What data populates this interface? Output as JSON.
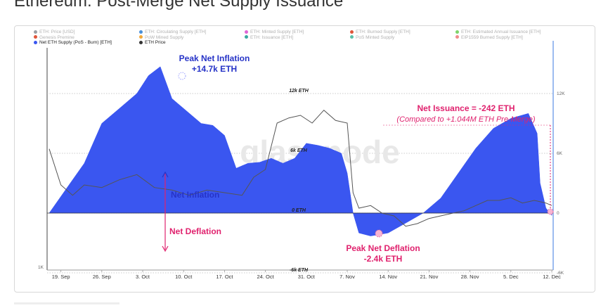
{
  "page": {
    "title": "Ethereum: Post-Merge Net Supply Issuance"
  },
  "legend": [
    {
      "label": "ETH: Price [USD]",
      "color": "#9aa0a6",
      "active": false
    },
    {
      "label": "ETH: Circulating Supply [ETH]",
      "color": "#4a90d9",
      "active": false
    },
    {
      "label": "ETH: Minted Supply [ETH]",
      "color": "#e066d6",
      "active": false
    },
    {
      "label": "ETH: Burned Supply [ETH]",
      "color": "#e0553a",
      "active": false
    },
    {
      "label": "ETH: Estimated Annual Issuance [ETH]",
      "color": "#7fd46b",
      "active": false
    },
    {
      "label": "Genesis Premine",
      "color": "#e0553a",
      "active": false
    },
    {
      "label": "PoW Mined Supply",
      "color": "#f2a93b",
      "active": false
    },
    {
      "label": "ETH: Issuance [ETH]",
      "color": "#3aa8a0",
      "active": false
    },
    {
      "label": "PoS Minted Supply",
      "color": "#5bc0a8",
      "active": false
    },
    {
      "label": "EIP1559 Burned Supply [ETH]",
      "color": "#f08a8a",
      "active": false
    },
    {
      "label": "Net ETH Supply (PoS - Burn) [ETH]",
      "color": "#3a56f0",
      "active": true
    },
    {
      "label": "ETH Price",
      "color": "#333333",
      "active": true
    }
  ],
  "annotations": {
    "peak_inflation_title": "Peak Net Inflation",
    "peak_inflation_value": "+14.7k ETH",
    "net_issuance_title": "Net Issuance = -242 ETH",
    "net_issuance_sub": "(Compared to +1.044M ETH Pre-Merge)",
    "net_inflation": "Net Inflation",
    "net_deflation": "Net Deflation",
    "peak_deflation_title": "Peak Net Deflation",
    "peak_deflation_value": "-2.4k ETH",
    "watermark": "glassnode"
  },
  "colors": {
    "area": "#3a56f0",
    "price_line": "#555555",
    "inflation_text": "#2633c7",
    "deflation_text": "#e0226e",
    "right_axis": "#3a78e0"
  },
  "chart_data": {
    "type": "area",
    "x_ticks": [
      "19. Sep",
      "26. Sep",
      "3. Oct",
      "10. Oct",
      "17. Oct",
      "24. Oct",
      "31. Oct",
      "7. Nov",
      "14. Nov",
      "21. Nov",
      "28. Nov",
      "5. Dec",
      "12. Dec"
    ],
    "y_ticks_center": [
      "12k ETH",
      "6k ETH",
      "0 ETH",
      "-6k ETH"
    ],
    "y_ticks_right": [
      "12K",
      "6K",
      "0",
      "-6K"
    ],
    "y_tick_values": [
      12000,
      6000,
      0,
      -6000
    ],
    "y_tick_left": "1K",
    "ylim": [
      -6000,
      15000
    ],
    "x_range": [
      0,
      86
    ],
    "x_tick_positions": [
      2,
      9,
      16,
      23,
      30,
      37,
      44,
      51,
      58,
      65,
      72,
      79,
      86
    ],
    "series": [
      {
        "name": "Net ETH Supply (PoS - Burn) [ETH]",
        "x": [
          0,
          3,
          6,
          9,
          12,
          15,
          17,
          19,
          21,
          22,
          24,
          26,
          28,
          30,
          32,
          34,
          36,
          38,
          40,
          42,
          44,
          46,
          48,
          50,
          51,
          52,
          53,
          55,
          58,
          61,
          64,
          67,
          70,
          73,
          76,
          79,
          82,
          83.5,
          84,
          85,
          86
        ],
        "values": [
          0,
          2500,
          5000,
          9000,
          10500,
          12000,
          13800,
          14700,
          11500,
          11000,
          10000,
          9000,
          8800,
          7800,
          4500,
          5000,
          5100,
          5500,
          5000,
          5500,
          7000,
          6800,
          6500,
          6000,
          4000,
          0,
          -2000,
          -2300,
          -2000,
          -1000,
          0,
          1500,
          4000,
          6500,
          8500,
          9500,
          10000,
          8000,
          3000,
          500,
          -242
        ]
      },
      {
        "name": "ETH Price",
        "x": [
          0,
          2,
          4,
          6,
          9,
          12,
          15,
          18,
          21,
          24,
          27,
          30,
          33,
          35,
          37,
          39,
          41,
          43,
          45,
          47,
          49,
          51,
          52,
          53,
          55,
          57,
          59,
          61,
          63,
          65,
          67,
          69,
          71,
          73,
          75,
          77,
          79,
          81,
          83,
          85,
          86
        ],
        "values": [
          1470,
          1330,
          1290,
          1330,
          1320,
          1350,
          1370,
          1320,
          1310,
          1290,
          1310,
          1300,
          1290,
          1360,
          1390,
          1570,
          1590,
          1600,
          1570,
          1620,
          1580,
          1570,
          1300,
          1240,
          1250,
          1220,
          1210,
          1170,
          1180,
          1200,
          1210,
          1220,
          1230,
          1250,
          1270,
          1270,
          1280,
          1260,
          1270,
          1260,
          1250
        ]
      }
    ],
    "price_ylim": [
      1000,
      1720
    ]
  }
}
